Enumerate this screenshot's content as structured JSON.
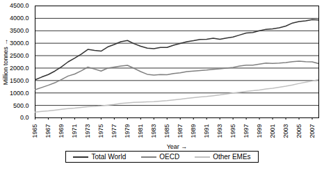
{
  "chart_data": {
    "type": "line",
    "x_label": "Year",
    "y_label": "Million tonnes",
    "x": [
      1965,
      1966,
      1967,
      1968,
      1969,
      1970,
      1971,
      1972,
      1973,
      1974,
      1975,
      1976,
      1977,
      1978,
      1979,
      1980,
      1981,
      1982,
      1983,
      1984,
      1985,
      1986,
      1987,
      1988,
      1989,
      1990,
      1991,
      1992,
      1993,
      1994,
      1995,
      1996,
      1997,
      1998,
      1999,
      2000,
      2001,
      2002,
      2003,
      2004,
      2005,
      2006,
      2007,
      2008
    ],
    "series": [
      {
        "name": "Total World",
        "color": "#333333",
        "values": [
          1530,
          1640,
          1740,
          1880,
          2050,
          2250,
          2400,
          2560,
          2750,
          2710,
          2680,
          2850,
          2950,
          3060,
          3110,
          2980,
          2880,
          2800,
          2780,
          2830,
          2830,
          2920,
          2990,
          3060,
          3100,
          3150,
          3160,
          3200,
          3160,
          3210,
          3250,
          3330,
          3410,
          3430,
          3500,
          3560,
          3580,
          3620,
          3690,
          3810,
          3870,
          3900,
          3950,
          3930
        ]
      },
      {
        "name": "OECD",
        "color": "#808080",
        "values": [
          1130,
          1220,
          1310,
          1410,
          1540,
          1680,
          1760,
          1890,
          2040,
          1960,
          1880,
          2000,
          2040,
          2080,
          2110,
          1990,
          1860,
          1750,
          1720,
          1740,
          1730,
          1780,
          1810,
          1860,
          1880,
          1900,
          1920,
          1950,
          1970,
          2000,
          2030,
          2080,
          2120,
          2120,
          2160,
          2200,
          2190,
          2200,
          2220,
          2260,
          2280,
          2260,
          2250,
          2180
        ]
      },
      {
        "name": "Other EMEs",
        "color": "#c0c0c0",
        "values": [
          230,
          260,
          280,
          310,
          340,
          370,
          390,
          420,
          450,
          460,
          480,
          510,
          540,
          580,
          600,
          620,
          630,
          640,
          650,
          670,
          690,
          720,
          750,
          780,
          810,
          840,
          860,
          890,
          920,
          960,
          1000,
          1030,
          1060,
          1090,
          1120,
          1160,
          1190,
          1230,
          1270,
          1320,
          1380,
          1430,
          1480,
          1540
        ]
      }
    ],
    "xlim": [
      1965,
      2008
    ],
    "xticks": [
      1965,
      1967,
      1969,
      1971,
      1973,
      1975,
      1977,
      1979,
      1981,
      1983,
      1985,
      1987,
      1989,
      1991,
      1993,
      1995,
      1997,
      1999,
      2001,
      2003,
      2005,
      2007
    ],
    "ylim": [
      0,
      4500
    ],
    "yticks": [
      {
        "value": 0,
        "label": "0.0"
      },
      {
        "value": 500,
        "label": "500.0"
      },
      {
        "value": 1000,
        "label": "1000.0"
      },
      {
        "value": 1500,
        "label": "1500.0"
      },
      {
        "value": 2000,
        "label": "2000.0"
      },
      {
        "value": 2500,
        "label": "2500.0"
      },
      {
        "value": 3000,
        "label": "3000.0"
      },
      {
        "value": 3500,
        "label": "3500.0"
      },
      {
        "value": 4000,
        "label": "4000.0"
      },
      {
        "value": 4500,
        "label": "4500.0"
      }
    ],
    "grid": true,
    "legend": "bottom"
  }
}
